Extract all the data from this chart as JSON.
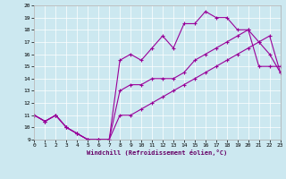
{
  "xlabel": "Windchill (Refroidissement éolien,°C)",
  "xlim": [
    0,
    23
  ],
  "ylim": [
    9,
    20
  ],
  "xticks": [
    0,
    1,
    2,
    3,
    4,
    5,
    6,
    7,
    8,
    9,
    10,
    11,
    12,
    13,
    14,
    15,
    16,
    17,
    18,
    19,
    20,
    21,
    22,
    23
  ],
  "yticks": [
    9,
    10,
    11,
    12,
    13,
    14,
    15,
    16,
    17,
    18,
    19,
    20
  ],
  "bg_color": "#cce8f0",
  "line_color": "#990099",
  "line1_x": [
    0,
    1,
    2,
    3,
    4,
    5,
    6,
    7,
    8,
    9,
    10,
    11,
    12,
    13,
    14,
    15,
    16,
    17,
    18,
    19,
    20,
    21,
    22,
    23
  ],
  "line1_y": [
    11,
    10.5,
    11,
    10,
    9.5,
    9,
    9,
    9,
    11,
    11,
    11.5,
    12,
    12.5,
    13,
    13.5,
    14,
    14.5,
    15,
    15.5,
    16,
    16.5,
    17,
    17.5,
    14.5
  ],
  "line2_x": [
    0,
    1,
    2,
    3,
    4,
    5,
    6,
    7,
    8,
    9,
    10,
    11,
    12,
    13,
    14,
    15,
    16,
    17,
    18,
    19,
    20,
    21,
    22,
    23
  ],
  "line2_y": [
    11,
    10.5,
    11,
    10,
    9.5,
    9,
    9,
    9,
    15.5,
    16,
    15.5,
    16.5,
    17.5,
    16.5,
    18.5,
    18.5,
    19.5,
    19,
    19,
    18,
    18,
    15,
    15,
    15
  ],
  "line3_x": [
    0,
    1,
    2,
    3,
    4,
    5,
    6,
    7,
    8,
    9,
    10,
    11,
    12,
    13,
    14,
    15,
    16,
    17,
    18,
    19,
    20,
    21,
    22,
    23
  ],
  "line3_y": [
    11,
    10.5,
    11,
    10,
    9.5,
    9,
    9,
    9,
    13,
    13.5,
    13.5,
    14,
    14,
    14,
    14.5,
    15.5,
    16,
    16.5,
    17,
    17.5,
    18,
    17,
    16,
    14.5
  ]
}
